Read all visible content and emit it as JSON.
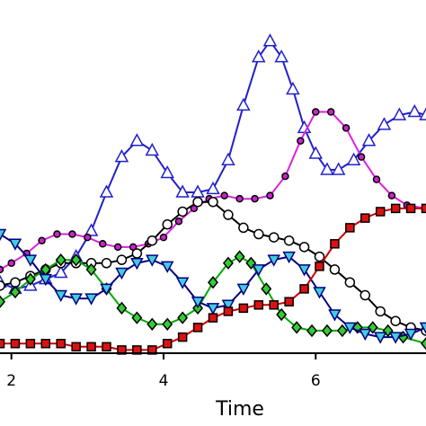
{
  "chart_data": {
    "type": "line",
    "title": "",
    "xlabel": "Time",
    "ylabel": "",
    "xlim": [
      1.85,
      7.45
    ],
    "ylim": [
      0,
      1
    ],
    "x_ticks": [
      2,
      4,
      6
    ],
    "x_tick_labels": [
      "2",
      "4",
      "6"
    ],
    "grid": false,
    "series": [
      {
        "color": "#2020cc",
        "marker": "triangle-up",
        "marker_fill": "#ffffff",
        "marker_stroke": "#2020cc",
        "points": [
          [
            1.85,
            0.22
          ],
          [
            2.05,
            0.2
          ],
          [
            2.25,
            0.21
          ],
          [
            2.45,
            0.23
          ],
          [
            2.65,
            0.25
          ],
          [
            2.85,
            0.3
          ],
          [
            3.05,
            0.38
          ],
          [
            3.25,
            0.5
          ],
          [
            3.45,
            0.61
          ],
          [
            3.65,
            0.66
          ],
          [
            3.85,
            0.63
          ],
          [
            4.05,
            0.56
          ],
          [
            4.25,
            0.5
          ],
          [
            4.45,
            0.5
          ],
          [
            4.65,
            0.51
          ],
          [
            4.85,
            0.6
          ],
          [
            5.05,
            0.77
          ],
          [
            5.25,
            0.92
          ],
          [
            5.4,
            0.97
          ],
          [
            5.55,
            0.92
          ],
          [
            5.7,
            0.82
          ],
          [
            5.85,
            0.7
          ],
          [
            6.0,
            0.62
          ],
          [
            6.15,
            0.57
          ],
          [
            6.3,
            0.57
          ],
          [
            6.5,
            0.6
          ],
          [
            6.7,
            0.66
          ],
          [
            6.9,
            0.71
          ],
          [
            7.1,
            0.74
          ],
          [
            7.3,
            0.75
          ],
          [
            7.45,
            0.74
          ]
        ]
      },
      {
        "color": "#dd22dd",
        "marker": "dot",
        "marker_fill": "#cc22cc",
        "marker_stroke": "#000000",
        "points": [
          [
            1.85,
            0.26
          ],
          [
            2.0,
            0.28
          ],
          [
            2.2,
            0.31
          ],
          [
            2.4,
            0.35
          ],
          [
            2.6,
            0.37
          ],
          [
            2.8,
            0.37
          ],
          [
            3.0,
            0.36
          ],
          [
            3.2,
            0.34
          ],
          [
            3.4,
            0.33
          ],
          [
            3.6,
            0.33
          ],
          [
            3.8,
            0.34
          ],
          [
            4.0,
            0.36
          ],
          [
            4.2,
            0.41
          ],
          [
            4.4,
            0.45
          ],
          [
            4.6,
            0.48
          ],
          [
            4.8,
            0.49
          ],
          [
            5.0,
            0.48
          ],
          [
            5.2,
            0.48
          ],
          [
            5.4,
            0.49
          ],
          [
            5.6,
            0.55
          ],
          [
            5.8,
            0.66
          ],
          [
            6.0,
            0.75
          ],
          [
            6.2,
            0.75
          ],
          [
            6.4,
            0.7
          ],
          [
            6.6,
            0.61
          ],
          [
            6.8,
            0.54
          ],
          [
            7.0,
            0.49
          ],
          [
            7.2,
            0.46
          ],
          [
            7.45,
            0.45
          ]
        ]
      },
      {
        "color": "#000000",
        "marker": "circle",
        "marker_fill": "#ffffff",
        "marker_stroke": "#000000",
        "points": [
          [
            1.85,
            0.21
          ],
          [
            2.05,
            0.22
          ],
          [
            2.25,
            0.24
          ],
          [
            2.45,
            0.26
          ],
          [
            2.65,
            0.28
          ],
          [
            2.85,
            0.28
          ],
          [
            3.05,
            0.28
          ],
          [
            3.25,
            0.28
          ],
          [
            3.45,
            0.29
          ],
          [
            3.65,
            0.31
          ],
          [
            3.85,
            0.35
          ],
          [
            4.05,
            0.4
          ],
          [
            4.25,
            0.44
          ],
          [
            4.45,
            0.47
          ],
          [
            4.65,
            0.47
          ],
          [
            4.85,
            0.43
          ],
          [
            5.05,
            0.39
          ],
          [
            5.25,
            0.37
          ],
          [
            5.45,
            0.36
          ],
          [
            5.65,
            0.35
          ],
          [
            5.85,
            0.33
          ],
          [
            6.05,
            0.3
          ],
          [
            6.25,
            0.26
          ],
          [
            6.45,
            0.22
          ],
          [
            6.65,
            0.18
          ],
          [
            6.85,
            0.13
          ],
          [
            7.05,
            0.1
          ],
          [
            7.25,
            0.08
          ],
          [
            7.45,
            0.07
          ]
        ]
      },
      {
        "color": "#00aa00",
        "marker": "diamond",
        "marker_fill": "#33cc33",
        "marker_stroke": "#000000",
        "points": [
          [
            1.85,
            0.16
          ],
          [
            2.05,
            0.19
          ],
          [
            2.25,
            0.23
          ],
          [
            2.45,
            0.26
          ],
          [
            2.65,
            0.29
          ],
          [
            2.85,
            0.29
          ],
          [
            3.05,
            0.26
          ],
          [
            3.25,
            0.2
          ],
          [
            3.45,
            0.14
          ],
          [
            3.65,
            0.11
          ],
          [
            3.85,
            0.09
          ],
          [
            4.05,
            0.09
          ],
          [
            4.25,
            0.11
          ],
          [
            4.45,
            0.14
          ],
          [
            4.65,
            0.22
          ],
          [
            4.85,
            0.28
          ],
          [
            5.0,
            0.3
          ],
          [
            5.15,
            0.28
          ],
          [
            5.35,
            0.2
          ],
          [
            5.55,
            0.12
          ],
          [
            5.75,
            0.08
          ],
          [
            5.95,
            0.07
          ],
          [
            6.15,
            0.07
          ],
          [
            6.35,
            0.07
          ],
          [
            6.55,
            0.08
          ],
          [
            6.75,
            0.08
          ],
          [
            6.95,
            0.07
          ],
          [
            7.15,
            0.05
          ],
          [
            7.45,
            0.03
          ]
        ]
      },
      {
        "color": "#000080",
        "marker": "triangle-down",
        "marker_fill": "#44ccdd",
        "marker_stroke": "#000080",
        "points": [
          [
            1.85,
            0.37
          ],
          [
            2.05,
            0.34
          ],
          [
            2.25,
            0.29
          ],
          [
            2.45,
            0.23
          ],
          [
            2.65,
            0.18
          ],
          [
            2.85,
            0.17
          ],
          [
            3.05,
            0.17
          ],
          [
            3.25,
            0.2
          ],
          [
            3.45,
            0.25
          ],
          [
            3.65,
            0.28
          ],
          [
            3.85,
            0.29
          ],
          [
            4.05,
            0.27
          ],
          [
            4.25,
            0.22
          ],
          [
            4.45,
            0.16
          ],
          [
            4.65,
            0.14
          ],
          [
            4.85,
            0.15
          ],
          [
            5.05,
            0.2
          ],
          [
            5.25,
            0.26
          ],
          [
            5.45,
            0.29
          ],
          [
            5.65,
            0.3
          ],
          [
            5.85,
            0.26
          ],
          [
            6.05,
            0.19
          ],
          [
            6.25,
            0.12
          ],
          [
            6.45,
            0.08
          ],
          [
            6.65,
            0.06
          ],
          [
            6.85,
            0.05
          ],
          [
            7.05,
            0.05
          ],
          [
            7.25,
            0.06
          ],
          [
            7.45,
            0.08
          ]
        ]
      },
      {
        "color": "#cc0000",
        "marker": "square",
        "marker_fill": "#dd1111",
        "marker_stroke": "#000000",
        "points": [
          [
            1.85,
            0.03
          ],
          [
            2.05,
            0.03
          ],
          [
            2.25,
            0.03
          ],
          [
            2.45,
            0.03
          ],
          [
            2.65,
            0.03
          ],
          [
            2.85,
            0.02
          ],
          [
            3.05,
            0.02
          ],
          [
            3.25,
            0.02
          ],
          [
            3.45,
            0.01
          ],
          [
            3.65,
            0.01
          ],
          [
            3.85,
            0.01
          ],
          [
            4.05,
            0.03
          ],
          [
            4.25,
            0.05
          ],
          [
            4.45,
            0.08
          ],
          [
            4.65,
            0.11
          ],
          [
            4.85,
            0.13
          ],
          [
            5.05,
            0.14
          ],
          [
            5.25,
            0.15
          ],
          [
            5.45,
            0.15
          ],
          [
            5.65,
            0.16
          ],
          [
            5.85,
            0.2
          ],
          [
            6.05,
            0.27
          ],
          [
            6.25,
            0.34
          ],
          [
            6.45,
            0.39
          ],
          [
            6.65,
            0.42
          ],
          [
            6.85,
            0.44
          ],
          [
            7.05,
            0.45
          ],
          [
            7.25,
            0.45
          ],
          [
            7.45,
            0.45
          ]
        ]
      }
    ]
  }
}
